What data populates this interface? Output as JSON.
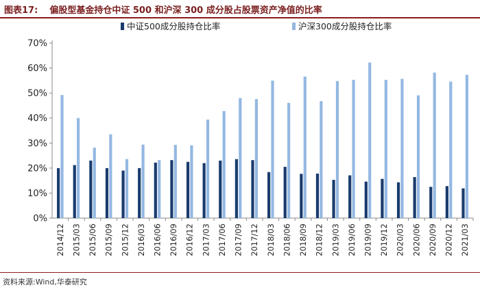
{
  "header": {
    "figure_label": "图表17:",
    "title": "偏股型基金持仓中证 500 和沪深 300 成分股占股票资产净值的比率"
  },
  "footer": {
    "source": "资料来源:Wind,华泰研究"
  },
  "colors": {
    "series_dark": "#1a3c6e",
    "series_light": "#94b8e2",
    "title_red": "#7a1e1e"
  },
  "chart_data": {
    "type": "bar",
    "title": "偏股型基金持仓中证 500 和沪深 300 成分股占股票资产净值的比率",
    "xlabel": "",
    "ylabel": "",
    "ylim": [
      0,
      0.7
    ],
    "y_ticks": [
      0,
      0.1,
      0.2,
      0.3,
      0.4,
      0.5,
      0.6,
      0.7
    ],
    "y_tick_labels": [
      "0%",
      "10%",
      "20%",
      "30%",
      "40%",
      "50%",
      "60%",
      "70%"
    ],
    "legend_position": "top",
    "grid": false,
    "categories": [
      "2014/12",
      "2015/03",
      "2015/06",
      "2015/09",
      "2015/12",
      "2016/03",
      "2016/06",
      "2016/09",
      "2016/12",
      "2017/03",
      "2017/06",
      "2017/09",
      "2017/12",
      "2018/03",
      "2018/06",
      "2018/09",
      "2018/12",
      "2019/03",
      "2019/06",
      "2019/09",
      "2019/12",
      "2020/03",
      "2020/06",
      "2020/09",
      "2020/12",
      "2021/03"
    ],
    "series": [
      {
        "name": "中证500成分股持仓比率",
        "values": [
          0.2,
          0.212,
          0.23,
          0.2,
          0.19,
          0.2,
          0.222,
          0.232,
          0.225,
          0.22,
          0.23,
          0.236,
          0.232,
          0.184,
          0.205,
          0.177,
          0.178,
          0.153,
          0.171,
          0.146,
          0.157,
          0.143,
          0.164,
          0.125,
          0.128,
          0.119
        ]
      },
      {
        "name": "沪深300成分股持仓比率",
        "values": [
          0.492,
          0.4,
          0.282,
          0.335,
          0.236,
          0.294,
          0.232,
          0.293,
          0.291,
          0.394,
          0.428,
          0.48,
          0.476,
          0.55,
          0.461,
          0.566,
          0.468,
          0.548,
          0.553,
          0.622,
          0.553,
          0.557,
          0.491,
          0.582,
          0.546,
          0.573
        ]
      }
    ]
  }
}
